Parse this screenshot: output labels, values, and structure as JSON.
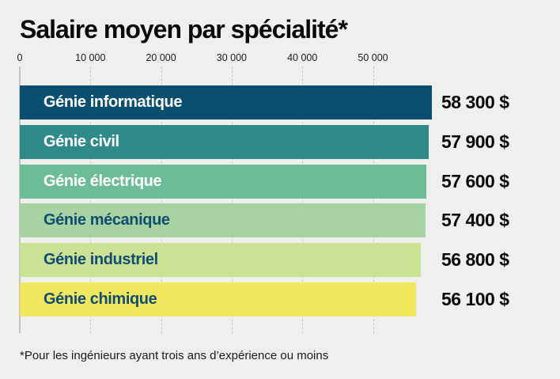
{
  "title": "Salaire moyen par spécialité*",
  "footnote": "*Pour les ingénieurs ayant trois ans d’expérience ou moins",
  "colors": {
    "background": "#efefed",
    "zero_axis_line": "#c2c2bf",
    "gridline": "#c7c7c4",
    "value_text": "#0a0a0a",
    "dark_label_text": "#114d73"
  },
  "chart_data": {
    "type": "bar",
    "orientation": "horizontal",
    "title": "Salaire moyen par spécialité*",
    "xlabel": "",
    "ylabel": "",
    "xlim": [
      0,
      60000
    ],
    "grid": "vertical-dashed",
    "legend": "none",
    "axis_ticks": [
      {
        "value": 0,
        "label": "0"
      },
      {
        "value": 10000,
        "label": "10 000"
      },
      {
        "value": 20000,
        "label": "20 000"
      },
      {
        "value": 30000,
        "label": "30 000"
      },
      {
        "value": 40000,
        "label": "40 000"
      },
      {
        "value": 50000,
        "label": "50 000"
      }
    ],
    "bars": [
      {
        "category": "Génie informatique",
        "value": 58300,
        "value_label": "58 300 $",
        "bar_color": "#0a4f70",
        "label_color": "#ffffff"
      },
      {
        "category": "Génie civil",
        "value": 57900,
        "value_label": "57 900 $",
        "bar_color": "#2e8b8a",
        "label_color": "#ffffff"
      },
      {
        "category": "Génie électrique",
        "value": 57600,
        "value_label": "57 600 $",
        "bar_color": "#6cbc97",
        "label_color": "#ffffff"
      },
      {
        "category": "Génie mécanique",
        "value": 57400,
        "value_label": "57 400 $",
        "bar_color": "#a6d3a1",
        "label_color": "#114d73"
      },
      {
        "category": "Génie industriel",
        "value": 56800,
        "value_label": "56 800 $",
        "bar_color": "#cbe194",
        "label_color": "#114d73"
      },
      {
        "category": "Génie chimique",
        "value": 56100,
        "value_label": "56 100 $",
        "bar_color": "#f0e75f",
        "label_color": "#114d73"
      }
    ]
  }
}
